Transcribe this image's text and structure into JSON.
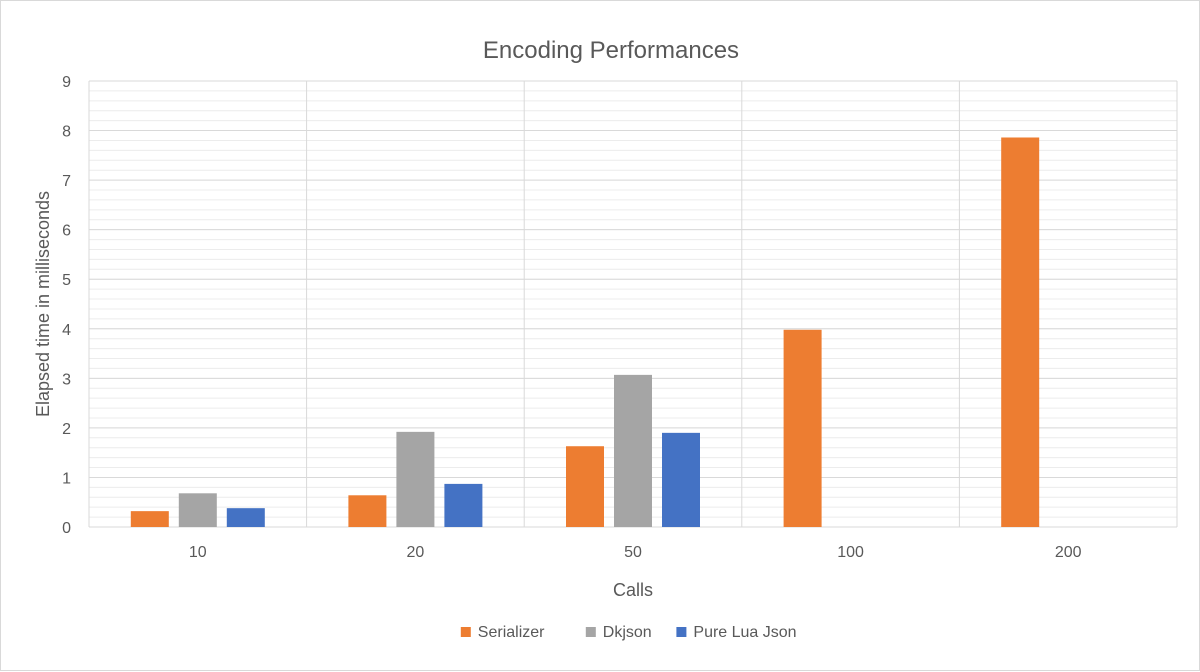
{
  "chart_data": {
    "type": "bar",
    "title": "Encoding Performances",
    "xlabel": "Calls",
    "ylabel": "Elapsed time in milliseconds",
    "categories": [
      "10",
      "20",
      "50",
      "100",
      "200"
    ],
    "ylim": [
      0,
      9
    ],
    "yticks": [
      0,
      1,
      2,
      3,
      4,
      5,
      6,
      7,
      8,
      9
    ],
    "minor_gridlines": true,
    "legend_position": "bottom",
    "series": [
      {
        "name": "Serializer",
        "color": "#ED7D31",
        "values": [
          0.32,
          0.64,
          1.63,
          3.98,
          7.86
        ]
      },
      {
        "name": "Dkjson",
        "color": "#A5A5A5",
        "values": [
          0.68,
          1.92,
          3.07,
          null,
          null
        ]
      },
      {
        "name": "Pure Lua Json",
        "color": "#4472C4",
        "values": [
          0.38,
          0.87,
          1.9,
          null,
          null
        ]
      }
    ]
  }
}
